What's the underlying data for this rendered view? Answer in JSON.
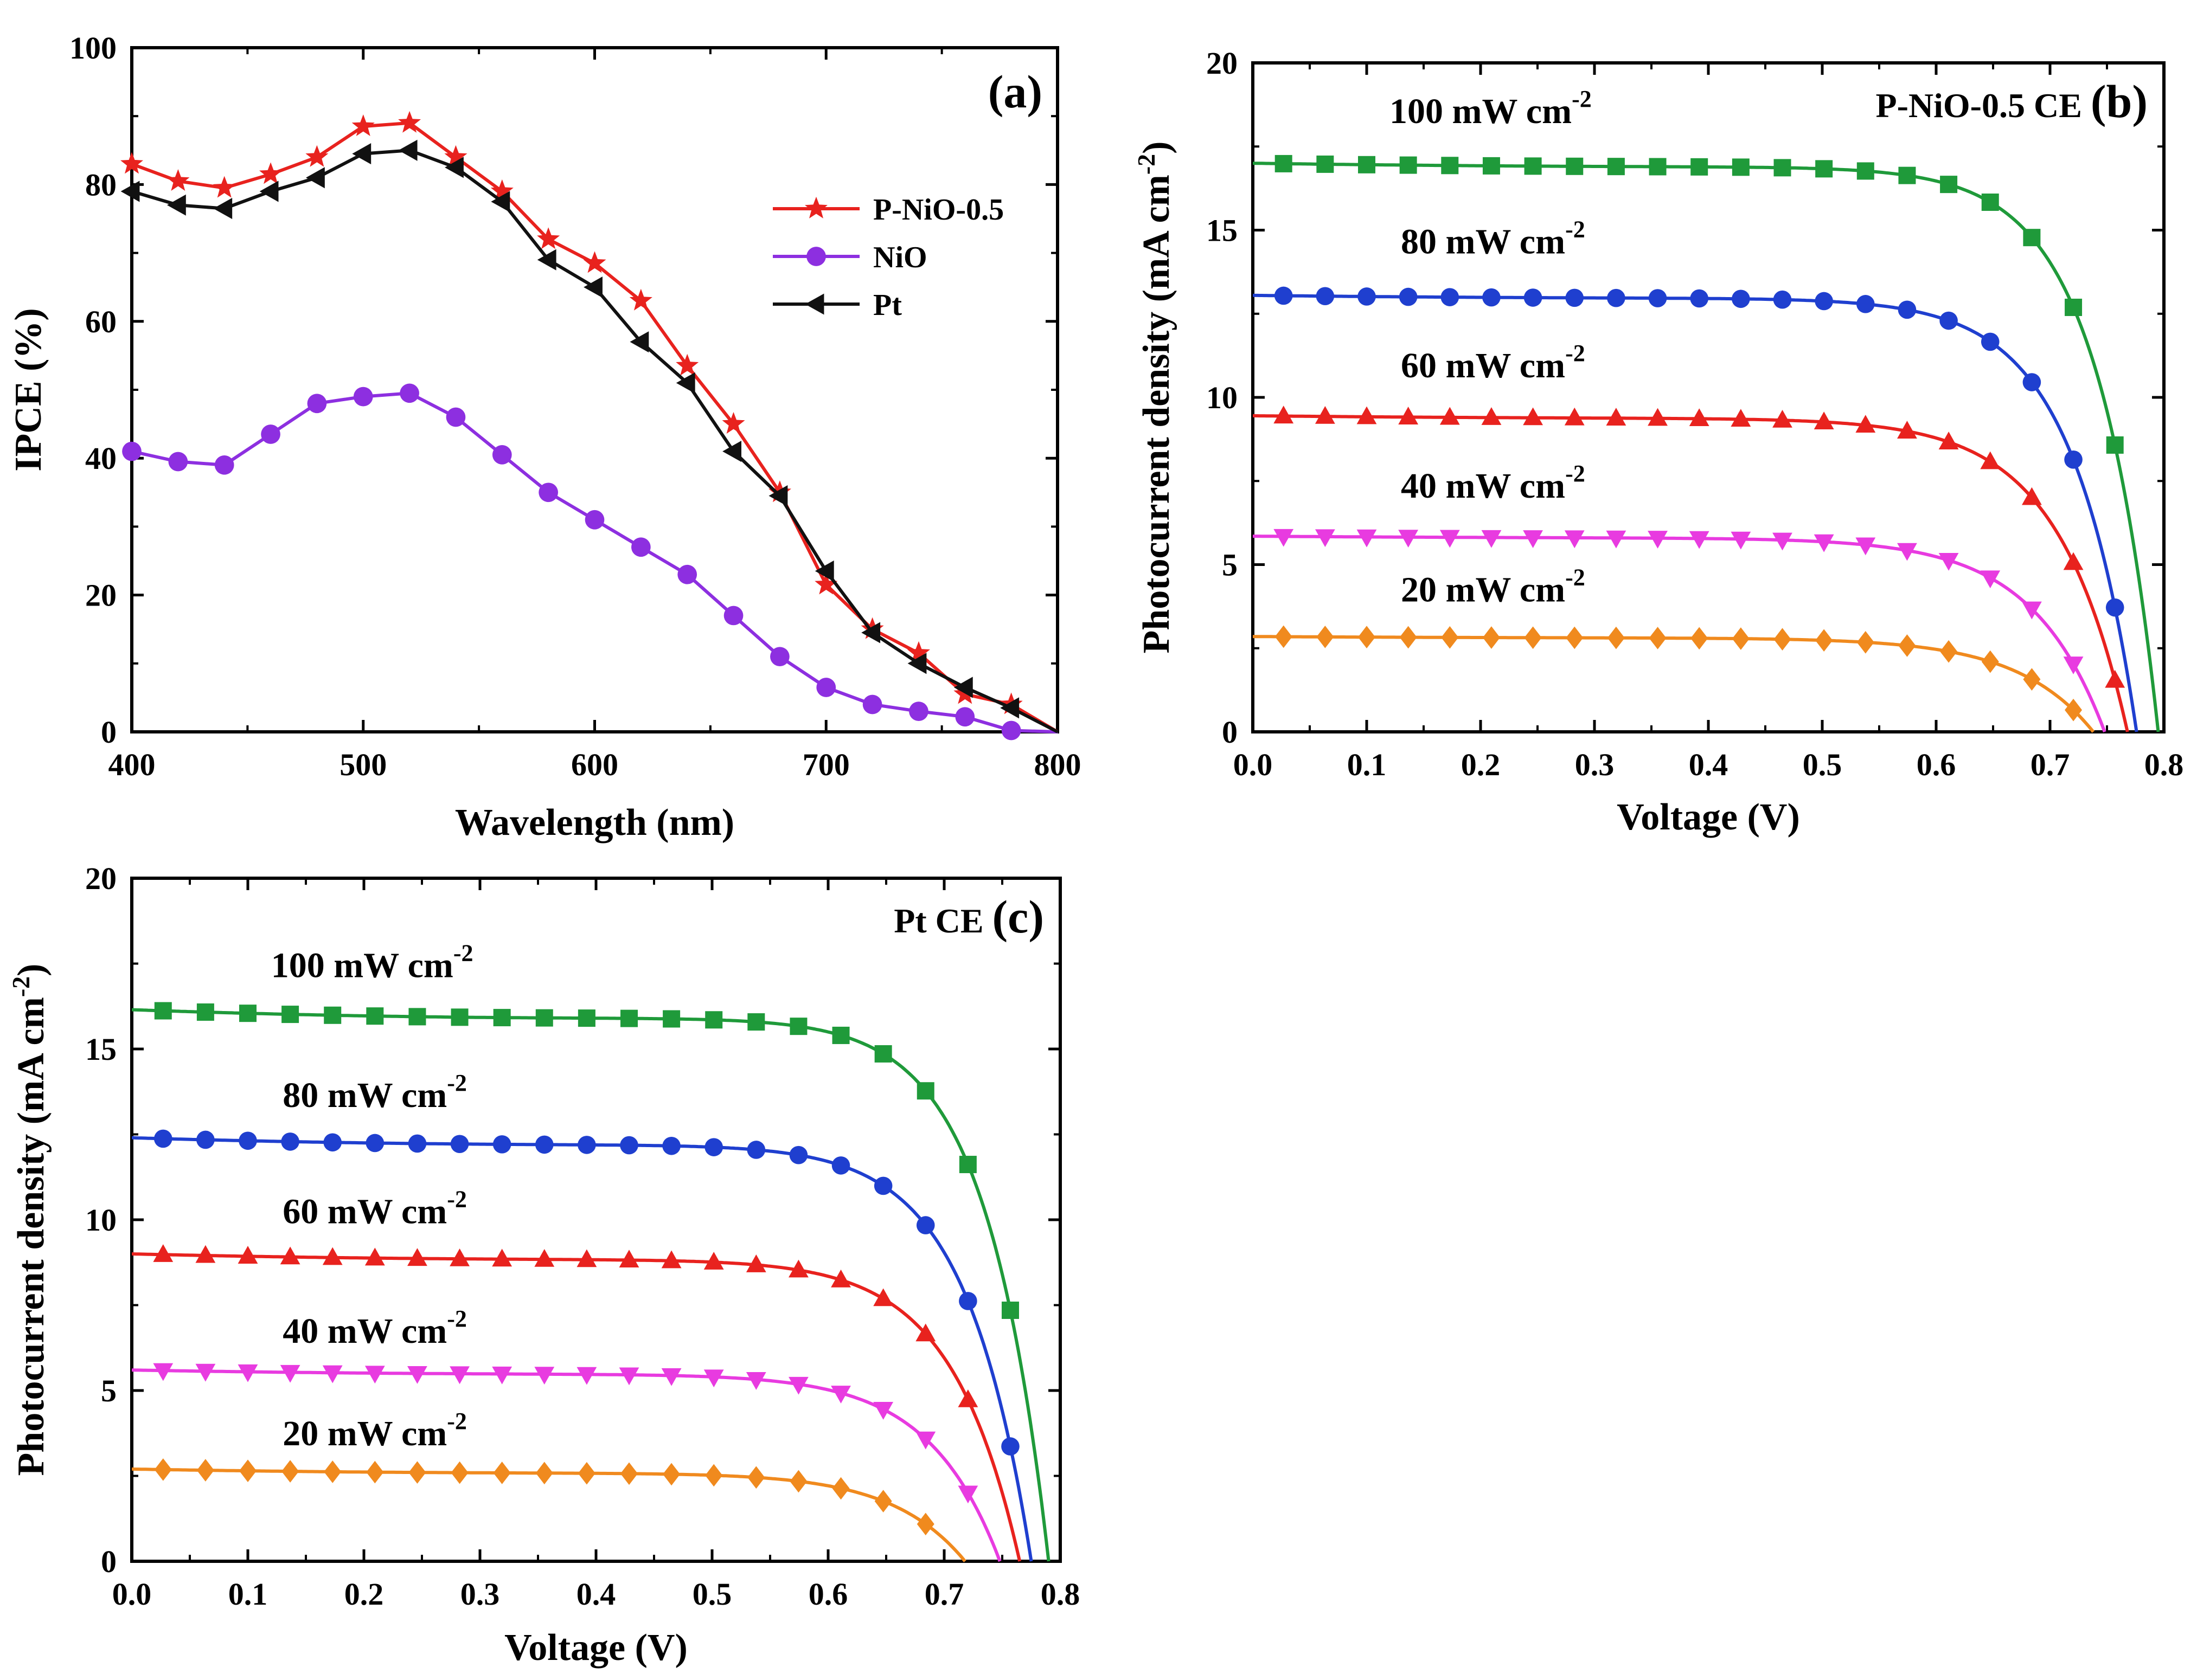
{
  "chart_data": [
    {
      "id": "a",
      "type": "line",
      "panel_label": "(a)",
      "xlabel": "Wavelength (nm)",
      "ylabel": "IPCE (%)",
      "xlim": [
        400,
        800
      ],
      "ylim": [
        0,
        100
      ],
      "xticks": [
        400,
        500,
        600,
        700,
        800
      ],
      "yticks": [
        0,
        20,
        40,
        60,
        80,
        100
      ],
      "x": [
        400,
        420,
        440,
        460,
        480,
        500,
        520,
        540,
        560,
        580,
        600,
        620,
        640,
        660,
        680,
        700,
        720,
        740,
        760,
        780,
        800
      ],
      "legend": "top-right",
      "series": [
        {
          "name": "P-NiO-0.5",
          "color": "#e8221e",
          "marker": "star",
          "values": [
            83,
            80.5,
            79.5,
            81.5,
            84,
            88.5,
            89,
            84,
            79,
            72,
            68.5,
            63,
            53.5,
            45,
            35,
            21.5,
            15,
            11.5,
            5.5,
            4,
            0
          ]
        },
        {
          "name": "NiO",
          "color": "#8d2fe0",
          "marker": "circle",
          "values": [
            41,
            39.5,
            39,
            43.5,
            48,
            49,
            49.5,
            46,
            40.5,
            35,
            31,
            27,
            23,
            17,
            11,
            6.5,
            4,
            3,
            2.2,
            0.2,
            0
          ]
        },
        {
          "name": "Pt",
          "color": "#111111",
          "marker": "triangle-left",
          "values": [
            79,
            77,
            76.5,
            79,
            81,
            84.5,
            85,
            82.5,
            77.5,
            69,
            65,
            57,
            51,
            41,
            34.5,
            23.5,
            14.5,
            10,
            6.5,
            3.5,
            0
          ]
        }
      ]
    },
    {
      "id": "b",
      "type": "line",
      "panel_label": "(b)",
      "title": "P-NiO-0.5 CE",
      "xlabel": "Voltage (V)",
      "ylabel": "Photocurrent density (mA cm",
      "ylabel_sup": "-2",
      "ylabel_close": ")",
      "xlim": [
        0,
        0.8
      ],
      "ylim": [
        0,
        20
      ],
      "xticks": [
        "0.0",
        "0.1",
        "0.2",
        "0.3",
        "0.4",
        "0.5",
        "0.6",
        "0.7",
        "0.8"
      ],
      "yticks": [
        0,
        5,
        10,
        15,
        20
      ],
      "unit": "mW cm",
      "unit_sup": "-2",
      "series": [
        {
          "name": "100",
          "color": "#1f9a3a",
          "marker": "square",
          "jsc": 17.0,
          "voc": 0.795,
          "n": 2.1,
          "k": 0.4,
          "slope": 0.5,
          "label_pos": [
            0.12,
            18.2
          ]
        },
        {
          "name": "80",
          "color": "#1f3fcf",
          "marker": "circle",
          "jsc": 13.05,
          "voc": 0.776,
          "n": 2.2,
          "k": 0.3,
          "slope": 0.4,
          "label_pos": [
            0.13,
            14.3
          ]
        },
        {
          "name": "60",
          "color": "#e8221e",
          "marker": "triangle-up",
          "jsc": 9.45,
          "voc": 0.768,
          "n": 2.4,
          "k": 0.2,
          "slope": 0.35,
          "label_pos": [
            0.13,
            10.6
          ]
        },
        {
          "name": "40",
          "color": "#e83be0",
          "marker": "triangle-down",
          "jsc": 5.85,
          "voc": 0.748,
          "n": 2.5,
          "k": 0.15,
          "slope": 0.25,
          "label_pos": [
            0.13,
            7.0
          ]
        },
        {
          "name": "20",
          "color": "#f08a1e",
          "marker": "diamond",
          "jsc": 2.85,
          "voc": 0.738,
          "n": 2.6,
          "k": 0.08,
          "slope": 0.2,
          "label_pos": [
            0.13,
            3.9
          ]
        }
      ]
    },
    {
      "id": "c",
      "type": "line",
      "panel_label": "(c)",
      "title": "Pt CE",
      "xlabel": "Voltage (V)",
      "ylabel": "Photocurrent density (mA cm",
      "ylabel_sup": "-2",
      "ylabel_close": ")",
      "xlim": [
        0,
        0.8
      ],
      "ylim": [
        0,
        20
      ],
      "xticks": [
        "0.0",
        "0.1",
        "0.2",
        "0.3",
        "0.4",
        "0.5",
        "0.6",
        "0.7",
        "0.8"
      ],
      "yticks": [
        0,
        5,
        10,
        15,
        20
      ],
      "unit": "mW cm",
      "unit_sup": "-2",
      "series": [
        {
          "name": "100",
          "color": "#1f9a3a",
          "marker": "square",
          "jsc": 16.15,
          "voc": 0.79,
          "n": 2.1,
          "k": 0.35,
          "slope": 1.2,
          "label_pos": [
            0.12,
            17.1
          ]
        },
        {
          "name": "80",
          "color": "#1f3fcf",
          "marker": "circle",
          "jsc": 12.4,
          "voc": 0.775,
          "n": 2.2,
          "k": 0.3,
          "slope": 1.0,
          "label_pos": [
            0.13,
            13.3
          ]
        },
        {
          "name": "60",
          "color": "#e8221e",
          "marker": "triangle-up",
          "jsc": 9.0,
          "voc": 0.765,
          "n": 2.3,
          "k": 0.2,
          "slope": 0.8,
          "label_pos": [
            0.13,
            9.9
          ]
        },
        {
          "name": "40",
          "color": "#e83be0",
          "marker": "triangle-down",
          "jsc": 5.6,
          "voc": 0.748,
          "n": 2.4,
          "k": 0.15,
          "slope": 0.6,
          "label_pos": [
            0.13,
            6.4
          ]
        },
        {
          "name": "20",
          "color": "#f08a1e",
          "marker": "diamond",
          "jsc": 2.7,
          "voc": 0.718,
          "n": 2.5,
          "k": 0.1,
          "slope": 0.6,
          "label_pos": [
            0.13,
            3.4
          ]
        }
      ]
    }
  ]
}
